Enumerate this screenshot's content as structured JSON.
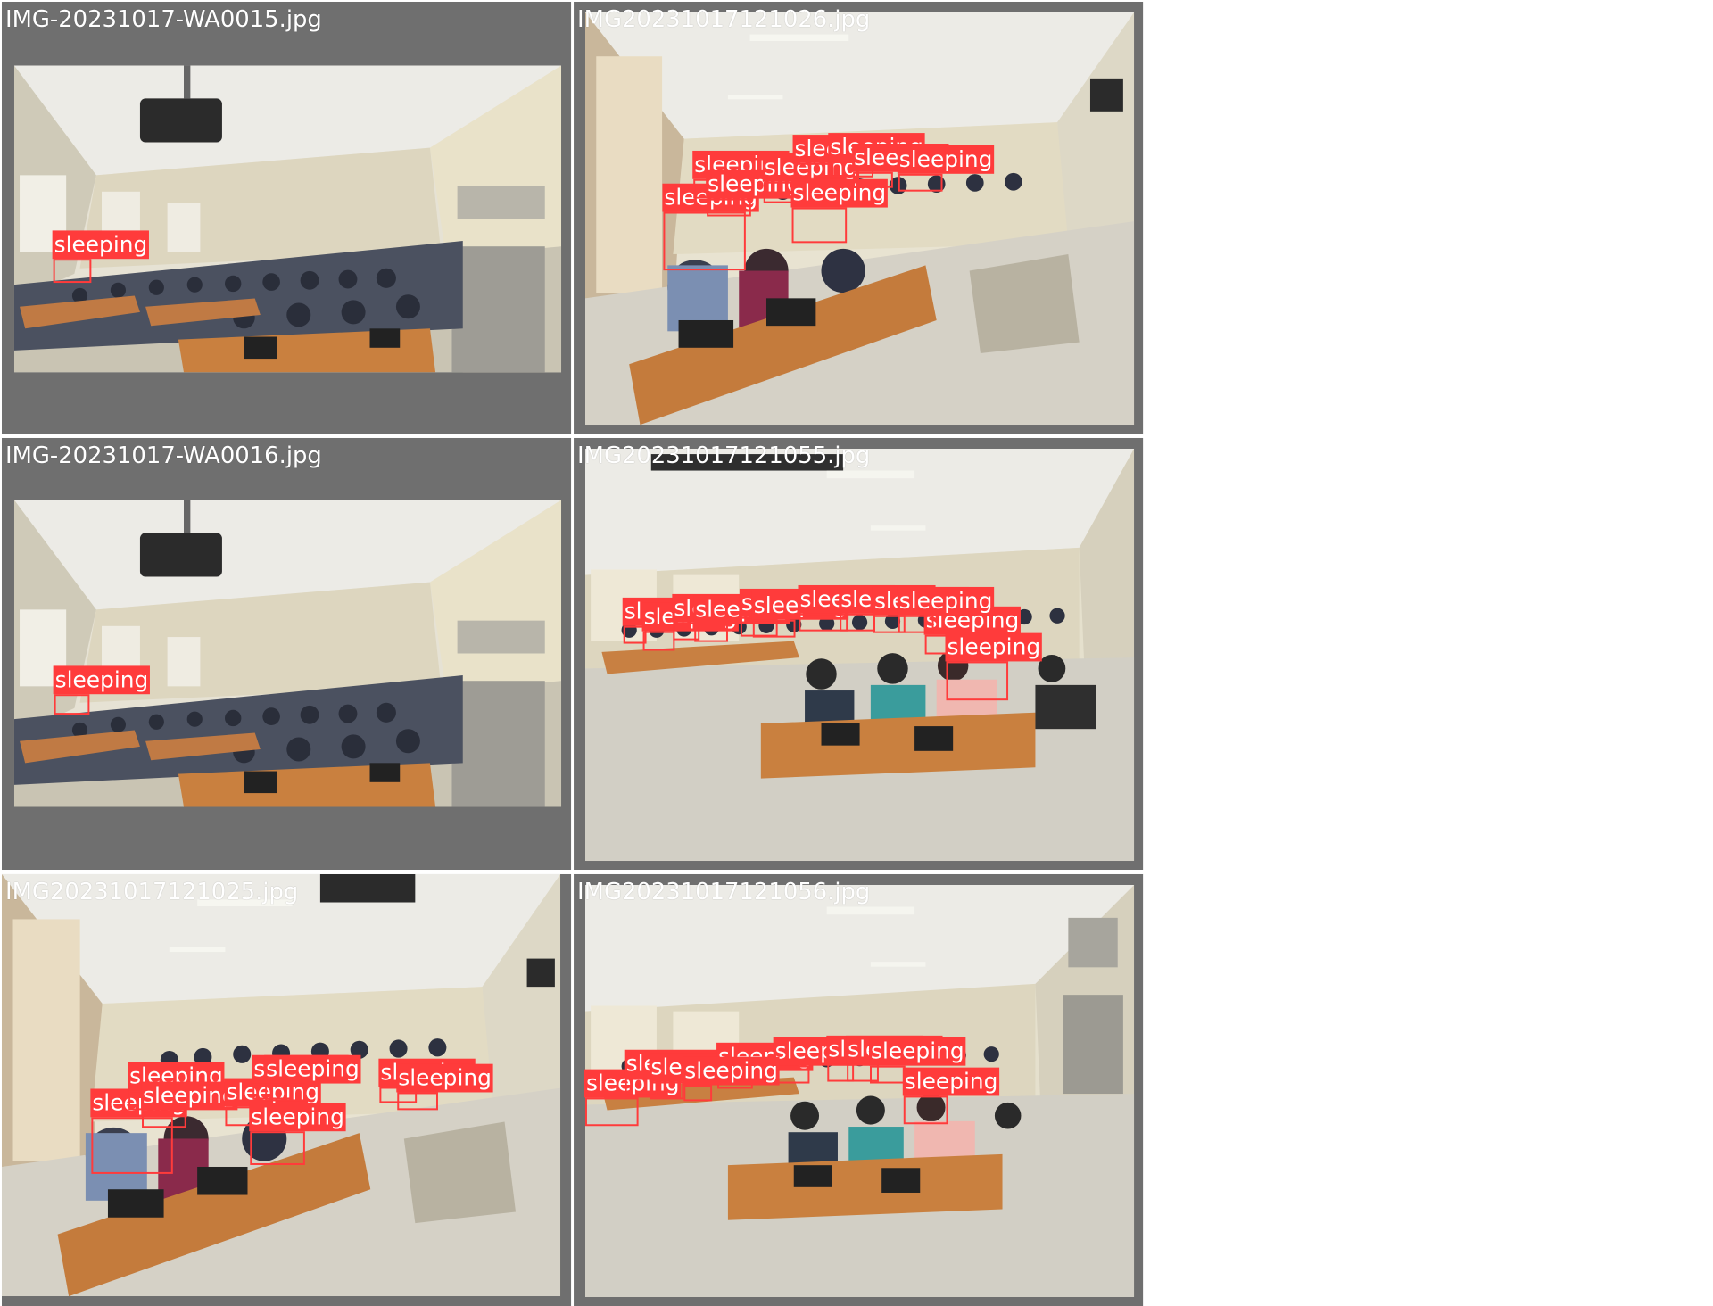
{
  "grid": {
    "cells": [
      {
        "filename": "IMG-20231017-WA0015.jpg",
        "detections": [
          {
            "label": "sleeping"
          }
        ]
      },
      {
        "filename": "IMG20231017121026.jpg",
        "detections": [
          {
            "label": "sleeping"
          },
          {
            "label": "sleeping"
          },
          {
            "label": "sleeping"
          },
          {
            "label": "sleeping"
          },
          {
            "label": "sleeping"
          },
          {
            "label": "sleeping"
          },
          {
            "label": "sleeping"
          },
          {
            "label": "sleeping"
          },
          {
            "label": "sleeping"
          }
        ]
      },
      {
        "filename": "IMG-20231017-WA0016.jpg",
        "detections": [
          {
            "label": "sleeping"
          }
        ]
      },
      {
        "filename": "IMG20231017121055.jpg",
        "detections": [
          {
            "label": "sleeping"
          },
          {
            "label": "sleeping"
          },
          {
            "label": "sleeping"
          },
          {
            "label": "sleeping"
          },
          {
            "label": "sleeping"
          },
          {
            "label": "sleeping"
          },
          {
            "label": "sleeping"
          },
          {
            "label": "sleeping"
          },
          {
            "label": "sleeping"
          },
          {
            "label": "sleeping"
          },
          {
            "label": "sleeping"
          },
          {
            "label": "sleeping"
          }
        ]
      },
      {
        "filename": "IMG20231017121025.jpg",
        "detections": [
          {
            "label": "sleeping"
          },
          {
            "label": "sleeping"
          },
          {
            "label": "sleeping"
          },
          {
            "label": "sleeping"
          },
          {
            "label": "sleeping"
          },
          {
            "label": "sleeping"
          },
          {
            "label": "sleeping"
          },
          {
            "label": "sleeping"
          },
          {
            "label": "sleeping"
          }
        ]
      },
      {
        "filename": "IMG20231017121056.jpg",
        "detections": [
          {
            "label": "sleeping"
          },
          {
            "label": "sleeping"
          },
          {
            "label": "sleeping"
          },
          {
            "label": "sleeping"
          },
          {
            "label": "sleeping"
          },
          {
            "label": "sleeping"
          },
          {
            "label": "sleeping"
          },
          {
            "label": "sleeping"
          },
          {
            "label": "sleeping"
          },
          {
            "label": "sleeping"
          }
        ]
      }
    ]
  },
  "colors": {
    "cell_background": "#6f6f6f",
    "box_color": "#ff3b3b",
    "label_text": "#ffffff"
  }
}
